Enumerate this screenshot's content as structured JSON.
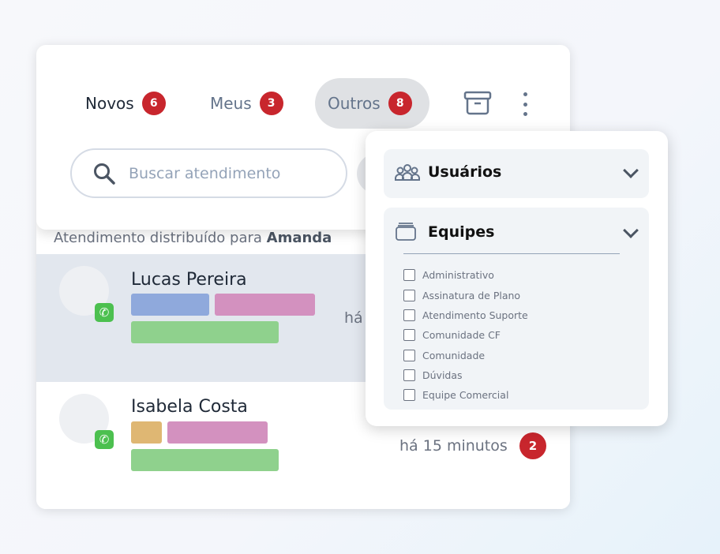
{
  "tabs": [
    {
      "label": "Novos",
      "count": "6"
    },
    {
      "label": "Meus",
      "count": "3"
    },
    {
      "label": "Outros",
      "count": "8",
      "active": true
    }
  ],
  "search": {
    "placeholder": "Buscar atendimento"
  },
  "distribution": {
    "prefix": "Atendimento distribuído para ",
    "user": "Amanda"
  },
  "conversations": [
    {
      "name": "Lucas Pereira",
      "time": "há",
      "channel": "whatsapp-icon",
      "tag_colors": [
        "#8fa9dc",
        "#d391bf",
        "#8fd18d"
      ]
    },
    {
      "name": "Isabela Costa",
      "time": "há 15 minutos",
      "unread": "2",
      "channel": "whatsapp-icon",
      "tag_colors": [
        "#dfb773",
        "#d391bf",
        "#8fd18d"
      ]
    }
  ],
  "filter": {
    "users_label": "Usuários",
    "teams_label": "Equipes",
    "teams": [
      "Administrativo",
      "Assinatura de Plano",
      "Atendimento Suporte",
      "Comunidade CF",
      "Comunidade",
      "Dúvidas",
      "Equipe Comercial"
    ]
  },
  "colors": {
    "badge": "#c8262d",
    "selected_row": "#e2e7ee",
    "active_tab": "#dfe1e4"
  }
}
